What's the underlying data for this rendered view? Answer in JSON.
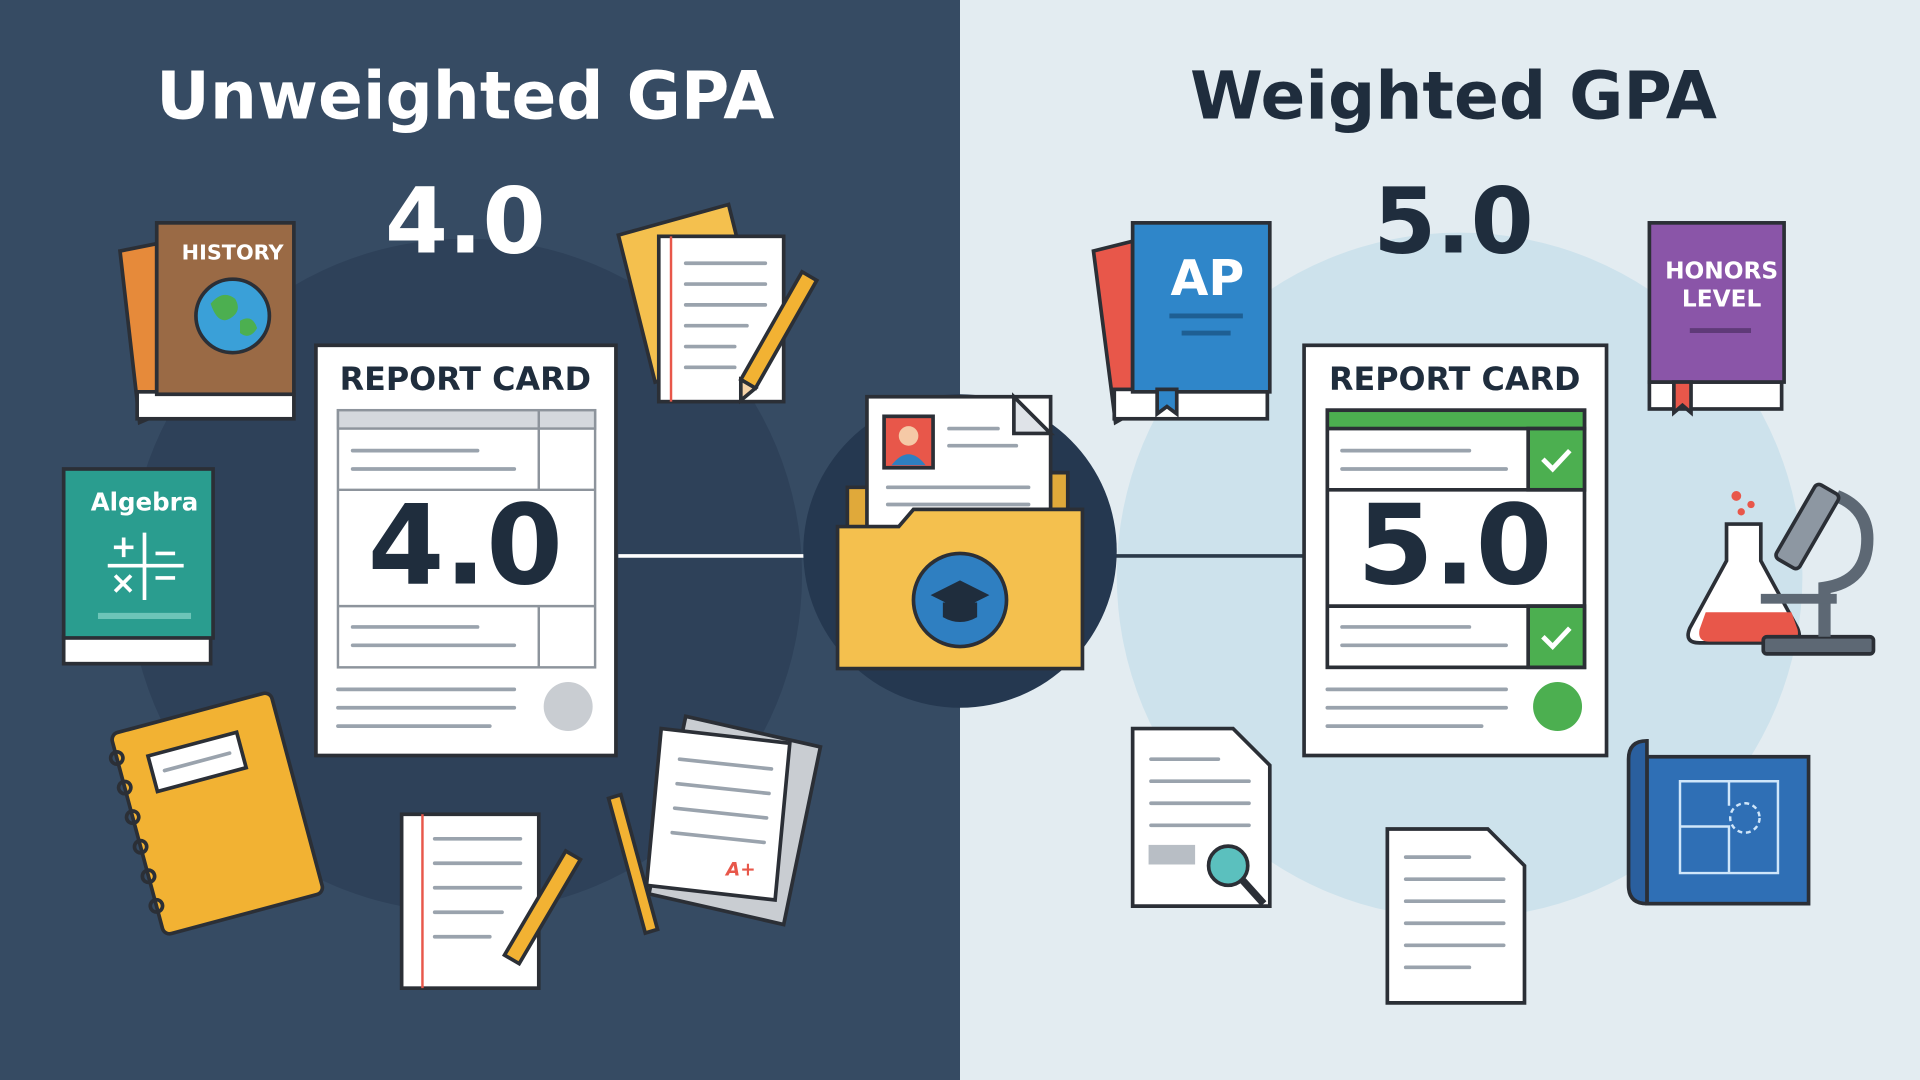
{
  "left": {
    "title": "Unweighted GPA",
    "gpa": "4.0",
    "report_card": {
      "title": "REPORT CARD",
      "gpa": "4.0"
    },
    "history_book": "HISTORY",
    "algebra_book": "Algebra",
    "paper_note": "A+"
  },
  "right": {
    "title": "Weighted GPA",
    "gpa": "5.0",
    "report_card": {
      "title": "REPORT CARD",
      "gpa": "5.0"
    },
    "ap_book": "AP",
    "honors_book": [
      "HONORS",
      "LEVEL"
    ]
  }
}
